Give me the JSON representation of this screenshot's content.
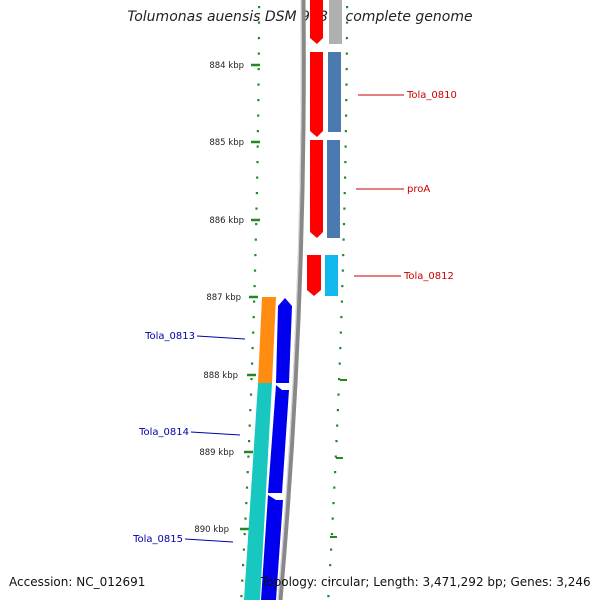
{
  "header": {
    "title": "Tolumonas auensis DSM 9187, complete genome"
  },
  "footer": {
    "accession": "Accession: NC_012691",
    "summary": "Topology: circular; Length: 3,471,292 bp; Genes: 3,246"
  },
  "scale": {
    "ticks": [
      "884 kbp",
      "885 kbp",
      "886 kbp",
      "887 kbp",
      "888 kbp",
      "889 kbp",
      "890 kbp"
    ]
  },
  "genes": [
    {
      "id": "Tola_0810",
      "strand": "plus",
      "label_color": "#cc0000"
    },
    {
      "id": "proA",
      "strand": "plus",
      "label_color": "#cc0000"
    },
    {
      "id": "Tola_0812",
      "strand": "plus",
      "label_color": "#cc0000"
    },
    {
      "id": "Tola_0813",
      "strand": "minus",
      "label_color": "#0000aa"
    },
    {
      "id": "Tola_0814",
      "strand": "minus",
      "label_color": "#0000aa"
    },
    {
      "id": "Tola_0815",
      "strand": "minus",
      "label_color": "#0000aa"
    }
  ],
  "colors": {
    "backbone": "#888888",
    "plus_cds": "#ff0000",
    "minus_cds": "#0000ee",
    "tick": "#228822",
    "steelblue": "#4a7ab0",
    "skyblue": "#11b8ee",
    "orange": "#ff8c10",
    "teal": "#18c8c0",
    "gray": "#b0b0b0"
  }
}
